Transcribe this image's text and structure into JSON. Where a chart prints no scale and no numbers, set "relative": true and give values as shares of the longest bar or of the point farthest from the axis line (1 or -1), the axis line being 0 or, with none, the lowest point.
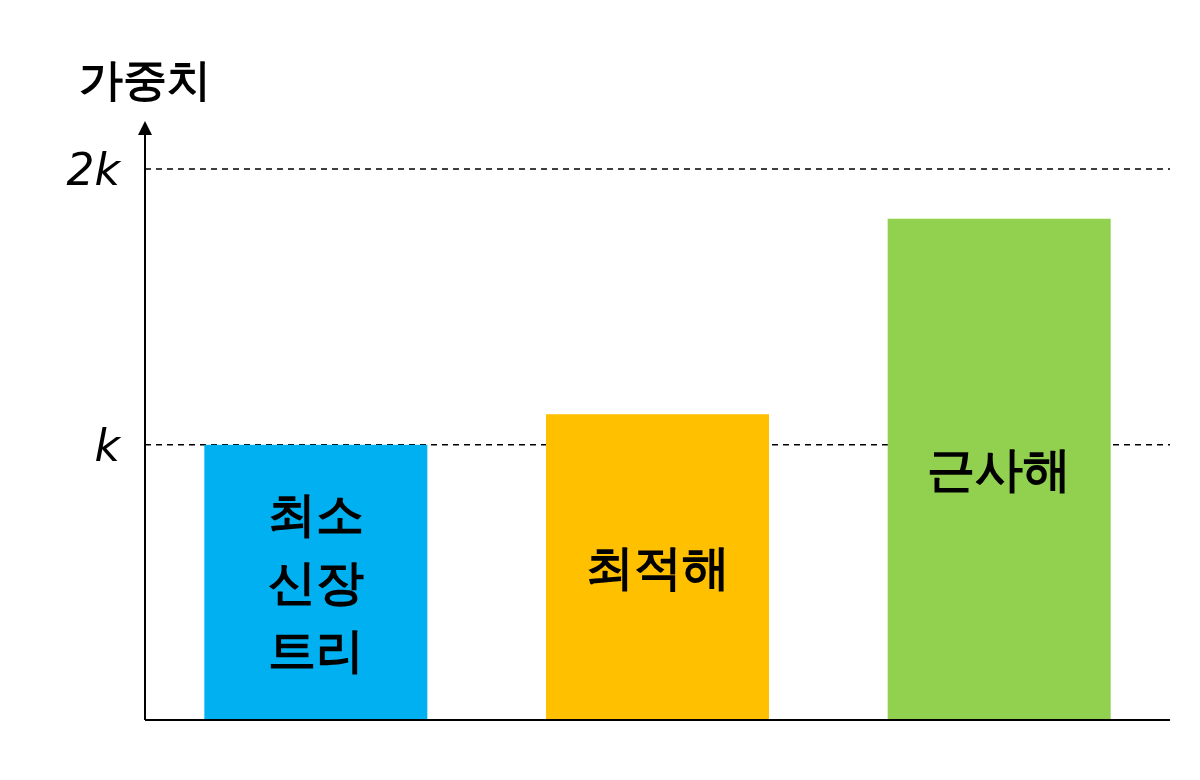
{
  "chart_data": {
    "type": "bar",
    "ylabel": "가중치",
    "relative": true,
    "categories": [
      "최소 신장 트리",
      "최적해",
      "근사해"
    ],
    "values": [
      0.549,
      0.61,
      1.0
    ],
    "colors": [
      "#00b0f0",
      "#ffc000",
      "#92d050"
    ],
    "ref_lines": [
      {
        "axis": "y",
        "value": 0.549,
        "label": "k",
        "line_style": "dashed"
      },
      {
        "axis": "y",
        "value": 1.099,
        "label": "2k",
        "line_style": "dashed"
      }
    ]
  }
}
